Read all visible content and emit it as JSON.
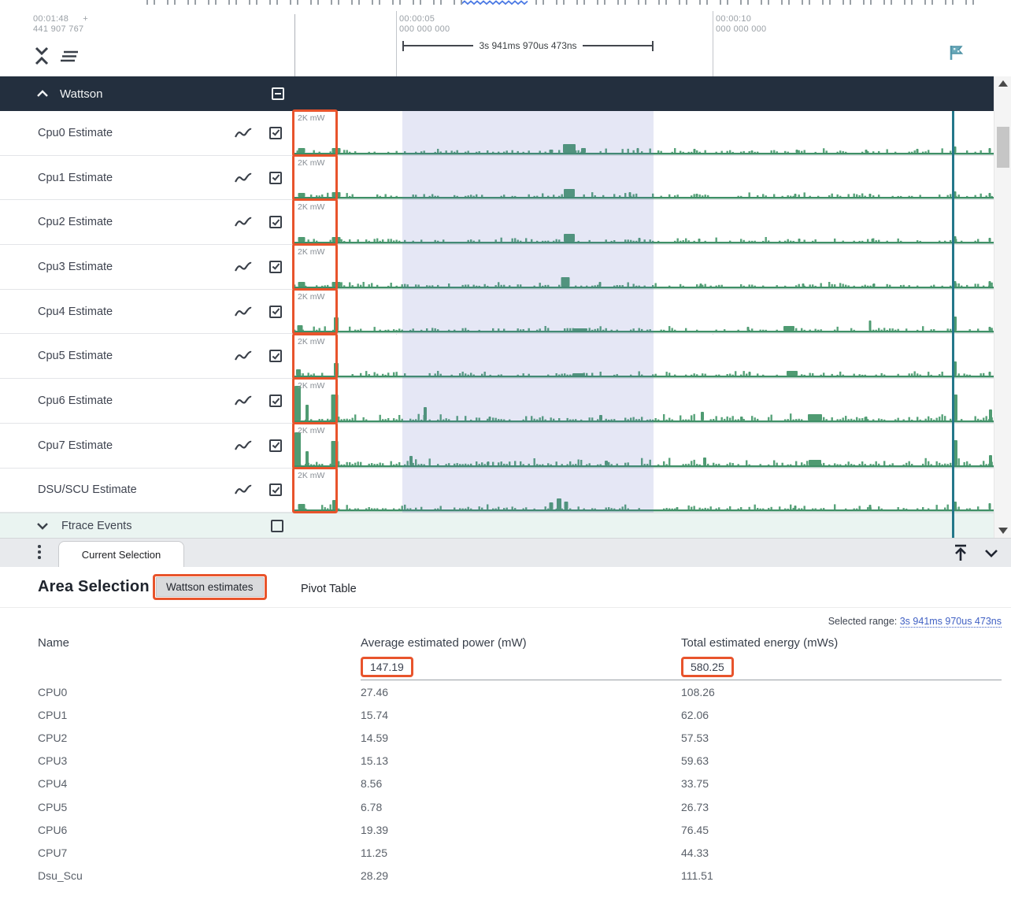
{
  "ruler": {
    "left_time": "00:01:48",
    "left_plus": "+",
    "left_sub": "441 907 767",
    "ticks": [
      {
        "time": "00:00:05",
        "sub": "000 000 000"
      },
      {
        "time": "00:00:10",
        "sub": "000 000 000"
      }
    ],
    "span_label": "3s 941ms 970us 473ns"
  },
  "icons": {
    "collapse": "unfold-less-icon",
    "track_list": "track-list-icon",
    "flag": "flag-icon",
    "chart": "line-chart-icon",
    "pin_top": "dock-to-top-icon",
    "collapse_panel": "chevron-down-icon",
    "menu": "vertical-dots-icon"
  },
  "group": {
    "label": "Wattson"
  },
  "tracks": [
    {
      "label": "Cpu0 Estimate",
      "scale": "2K mW",
      "checked": true,
      "noise": 1.0,
      "spikes": [
        [
          383,
          6,
          9
        ],
        [
          427,
          6,
          11
        ],
        [
          700,
          4,
          5
        ],
        [
          723,
          11,
          16
        ],
        [
          741,
          6,
          6
        ],
        [
          810,
          6,
          3
        ],
        [
          882,
          5,
          3
        ],
        [
          955,
          3,
          3
        ],
        [
          1012,
          4,
          3
        ],
        [
          1100,
          4,
          3
        ],
        [
          1165,
          5,
          3
        ],
        [
          1213,
          8,
          3
        ],
        [
          1257,
          6,
          3
        ]
      ]
    },
    {
      "label": "Cpu1 Estimate",
      "scale": "2K mW",
      "checked": true,
      "noise": 1.0,
      "spikes": [
        [
          383,
          5,
          9
        ],
        [
          427,
          6,
          11
        ],
        [
          723,
          10,
          14
        ],
        [
          800,
          6,
          3
        ],
        [
          885,
          4,
          3
        ],
        [
          1010,
          4,
          3
        ],
        [
          1105,
          4,
          3
        ],
        [
          1213,
          7,
          3
        ],
        [
          1257,
          5,
          3
        ]
      ]
    },
    {
      "label": "Cpu2 Estimate",
      "scale": "2K mW",
      "checked": true,
      "noise": 1.0,
      "spikes": [
        [
          383,
          6,
          9
        ],
        [
          427,
          6,
          11
        ],
        [
          723,
          10,
          14
        ],
        [
          812,
          5,
          3
        ],
        [
          888,
          4,
          3
        ],
        [
          1015,
          4,
          3
        ],
        [
          1108,
          4,
          3
        ],
        [
          1213,
          7,
          3
        ],
        [
          1257,
          5,
          3
        ]
      ]
    },
    {
      "label": "Cpu3 Estimate",
      "scale": "2K mW",
      "checked": true,
      "noise": 1.0,
      "spikes": [
        [
          383,
          6,
          9
        ],
        [
          427,
          6,
          11
        ],
        [
          718,
          12,
          11
        ],
        [
          762,
          6,
          3
        ],
        [
          890,
          4,
          3
        ],
        [
          1020,
          4,
          3
        ],
        [
          1110,
          4,
          3
        ],
        [
          1213,
          7,
          3
        ],
        [
          1257,
          7,
          3
        ]
      ]
    },
    {
      "label": "Cpu4 Estimate",
      "scale": "2K mW",
      "checked": true,
      "noise": 1.0,
      "spikes": [
        [
          381,
          7,
          7
        ],
        [
          427,
          17,
          6
        ],
        [
          737,
          3,
          18
        ],
        [
          950,
          5,
          3
        ],
        [
          1002,
          6,
          14
        ],
        [
          1105,
          13,
          3
        ],
        [
          1213,
          18,
          4
        ],
        [
          1257,
          5,
          3
        ]
      ]
    },
    {
      "label": "Cpu5 Estimate",
      "scale": "2K mW",
      "checked": true,
      "noise": 1.0,
      "spikes": [
        [
          379,
          8,
          6
        ],
        [
          427,
          16,
          6
        ],
        [
          735,
          3,
          16
        ],
        [
          952,
          5,
          3
        ],
        [
          1006,
          6,
          14
        ],
        [
          1213,
          18,
          4
        ],
        [
          1257,
          5,
          3
        ]
      ]
    },
    {
      "label": "Cpu6 Estimate",
      "scale": "2K mW",
      "checked": true,
      "noise": 1.6,
      "spikes": [
        [
          378,
          44,
          8
        ],
        [
          390,
          20,
          4
        ],
        [
          425,
          33,
          9
        ],
        [
          540,
          17,
          4
        ],
        [
          622,
          5,
          3
        ],
        [
          763,
          7,
          4
        ],
        [
          892,
          11,
          4
        ],
        [
          942,
          5,
          3
        ],
        [
          1035,
          8,
          18
        ],
        [
          1100,
          5,
          3
        ],
        [
          1213,
          33,
          6
        ],
        [
          1258,
          14,
          4
        ]
      ]
    },
    {
      "label": "Cpu7 Estimate",
      "scale": "2K mW",
      "checked": true,
      "noise": 1.6,
      "spikes": [
        [
          378,
          42,
          8
        ],
        [
          390,
          18,
          4
        ],
        [
          425,
          31,
          9
        ],
        [
          522,
          12,
          4
        ],
        [
          620,
          5,
          3
        ],
        [
          770,
          6,
          4
        ],
        [
          895,
          10,
          4
        ],
        [
          1035,
          7,
          16
        ],
        [
          1213,
          32,
          6
        ],
        [
          1258,
          13,
          4
        ]
      ]
    },
    {
      "label": "DSU/SCU Estimate",
      "scale": "2K mW",
      "checked": true,
      "noise": 1.1,
      "spikes": [
        [
          383,
          7,
          9
        ],
        [
          425,
          12,
          6
        ],
        [
          700,
          9,
          5
        ],
        [
          710,
          14,
          6
        ],
        [
          719,
          10,
          5
        ],
        [
          860,
          3,
          3
        ],
        [
          1010,
          5,
          3
        ],
        [
          1105,
          6,
          3
        ],
        [
          1213,
          10,
          4
        ],
        [
          1257,
          8,
          3
        ]
      ]
    }
  ],
  "ftrace": {
    "label": "Ftrace Events",
    "checked": false
  },
  "tab_bar": {
    "current_tab": "Current Selection"
  },
  "panel": {
    "title": "Area Selection",
    "tab_selected": "Wattson estimates",
    "tab_other": "Pivot Table",
    "selected_range_label": "Selected range:",
    "selected_range_value": "3s 941ms 970us 473ns",
    "table": {
      "columns": [
        "Name",
        "Average estimated power (mW)",
        "Total estimated energy (mWs)"
      ],
      "totals": {
        "power": "147.19",
        "energy": "580.25"
      },
      "rows": [
        [
          "CPU0",
          "27.46",
          "108.26"
        ],
        [
          "CPU1",
          "15.74",
          "62.06"
        ],
        [
          "CPU2",
          "14.59",
          "57.53"
        ],
        [
          "CPU3",
          "15.13",
          "59.63"
        ],
        [
          "CPU4",
          "8.56",
          "33.75"
        ],
        [
          "CPU5",
          "6.78",
          "26.73"
        ],
        [
          "CPU6",
          "19.39",
          "76.45"
        ],
        [
          "CPU7",
          "11.25",
          "44.33"
        ],
        [
          "Dsu_Scu",
          "28.29",
          "111.51"
        ]
      ]
    }
  },
  "colors": {
    "annotation_orange": "#e8542c",
    "trace_green": "#58a37a",
    "trace_baseline": "#3f8f67",
    "selection_blue": "#5e68be",
    "marker_teal": "#23778a",
    "group_header_dark": "#232f3e",
    "link_blue": "#4161c4",
    "squiggle_blue": "#4b79e4"
  }
}
